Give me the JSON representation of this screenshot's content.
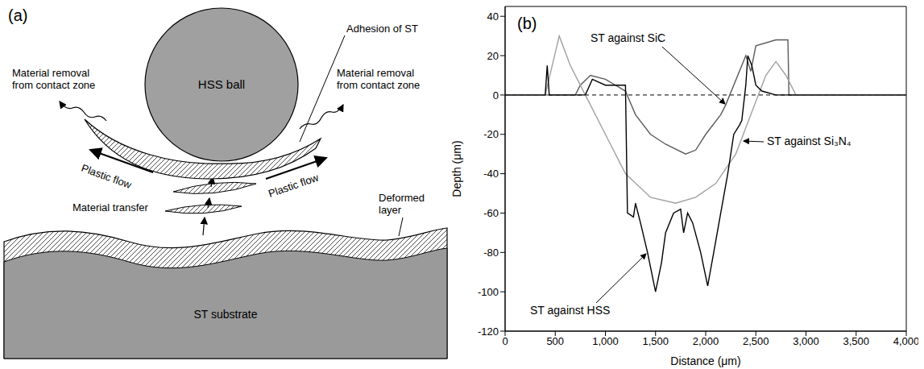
{
  "diagram": {
    "panel_label": "(a)",
    "ball": "HSS ball",
    "adhesion": "Adhesion of ST",
    "removal_left": "Material removal from contact zone",
    "removal_right": "Material removal from contact zone",
    "plastic_flow_left": "Plastic flow",
    "plastic_flow_right": "Plastic flow",
    "transfer": "Material transfer",
    "deformed_layer": "Deformed layer",
    "substrate": "ST substrate"
  },
  "chart_data": {
    "type": "line",
    "panel_label": "(b)",
    "x_label": "Distance (μm)",
    "y_label": "Depth (μm)",
    "xlim": [
      0,
      4000
    ],
    "xticks": [
      0,
      {
        "value": 500,
        "label": "500"
      },
      {
        "value": 1000,
        "label": "1,000"
      },
      {
        "value": 1500,
        "label": "1,500"
      },
      {
        "value": 2000,
        "label": "2,000"
      },
      {
        "value": 2500,
        "label": "2,500"
      },
      {
        "value": 3000,
        "label": "3,000"
      },
      {
        "value": 3500,
        "label": "3,500"
      },
      {
        "value": 4000,
        "label": "4,000"
      }
    ],
    "ylim": [
      -120,
      45
    ],
    "yticks": [
      -120,
      -100,
      -80,
      -60,
      -40,
      -20,
      0,
      20,
      40
    ],
    "grid": false,
    "reference_line": {
      "y": 0,
      "line_style": "dashed"
    },
    "series": [
      {
        "name": "ST against SiC",
        "color": "#5a5a5a",
        "x": [
          0,
          300,
          700,
          750,
          850,
          1000,
          1200,
          1300,
          1450,
          1600,
          1800,
          1900,
          2000,
          2150,
          2200,
          2400,
          2450,
          2500,
          2700,
          2820,
          2830,
          3200,
          3600,
          4000
        ],
        "values": [
          0,
          0,
          0,
          5,
          10,
          8,
          2,
          -10,
          -20,
          -25,
          -30,
          -28,
          -20,
          -10,
          -5,
          20,
          12,
          25,
          28,
          28,
          0,
          0,
          0,
          0
        ]
      },
      {
        "name": "ST against Si₃N₄",
        "color": "#a0a0a0",
        "x": [
          0,
          400,
          540,
          650,
          800,
          1000,
          1200,
          1450,
          1700,
          1900,
          2100,
          2300,
          2450,
          2600,
          2700,
          2800,
          2900,
          3500,
          4000
        ],
        "values": [
          0,
          0,
          30,
          15,
          0,
          -20,
          -40,
          -52,
          -55,
          -52,
          -45,
          -30,
          -10,
          10,
          17,
          10,
          0,
          0,
          0
        ]
      },
      {
        "name": "ST against HSS",
        "color": "#000000",
        "x": [
          0,
          400,
          420,
          440,
          800,
          870,
          1000,
          1200,
          1220,
          1280,
          1300,
          1350,
          1420,
          1500,
          1560,
          1600,
          1680,
          1750,
          1780,
          1820,
          1870,
          1950,
          2020,
          2080,
          2150,
          2220,
          2280,
          2340,
          2360,
          2400,
          2420,
          2460,
          2500,
          2560,
          2700,
          3300,
          4000
        ],
        "values": [
          0,
          0,
          15,
          0,
          0,
          8,
          5,
          5,
          -60,
          -62,
          -55,
          -65,
          -80,
          -100,
          -85,
          -70,
          -60,
          -58,
          -70,
          -60,
          -65,
          -80,
          -97,
          -80,
          -60,
          -40,
          -20,
          -15,
          -13,
          5,
          20,
          15,
          5,
          2,
          0,
          0,
          0
        ]
      }
    ]
  }
}
